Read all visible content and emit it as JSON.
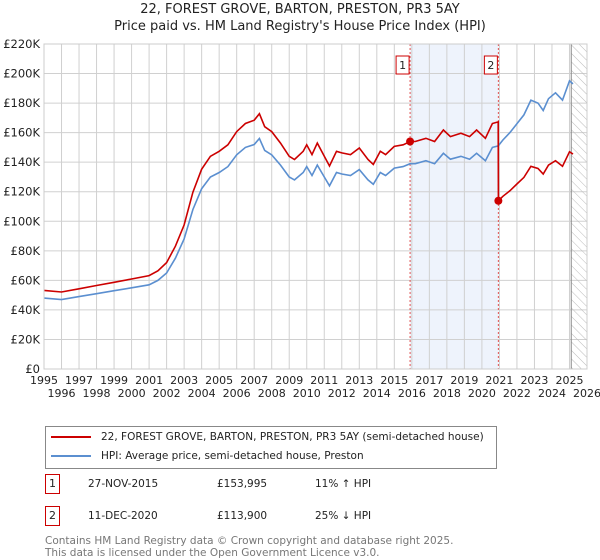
{
  "chart_data": {
    "type": "line",
    "title": "22, FOREST GROVE, BARTON, PRESTON, PR3 5AY",
    "subtitle": "Price paid vs. HM Land Registry's House Price Index (HPI)",
    "xlabel": "",
    "ylabel": "",
    "xlim": [
      1995,
      2026
    ],
    "ylim": [
      0,
      220000
    ],
    "x_ticks": [
      "1995",
      "1996",
      "1997",
      "1998",
      "1999",
      "2000",
      "2001",
      "2002",
      "2003",
      "2004",
      "2005",
      "2006",
      "2007",
      "2008",
      "2009",
      "2010",
      "2011",
      "2012",
      "2013",
      "2014",
      "2015",
      "2016",
      "2017",
      "2018",
      "2019",
      "2020",
      "2021",
      "2022",
      "2023",
      "2024",
      "2025",
      "2026"
    ],
    "y_ticks": [
      {
        "v": 0,
        "label": "£0"
      },
      {
        "v": 20000,
        "label": "£20K"
      },
      {
        "v": 40000,
        "label": "£40K"
      },
      {
        "v": 60000,
        "label": "£60K"
      },
      {
        "v": 80000,
        "label": "£80K"
      },
      {
        "v": 100000,
        "label": "£100K"
      },
      {
        "v": 120000,
        "label": "£120K"
      },
      {
        "v": 140000,
        "label": "£140K"
      },
      {
        "v": 160000,
        "label": "£160K"
      },
      {
        "v": 180000,
        "label": "£180K"
      },
      {
        "v": 200000,
        "label": "£200K"
      },
      {
        "v": 220000,
        "label": "£220K"
      }
    ],
    "grid": true,
    "forecast_from": 2025.1,
    "series": [
      {
        "name": "22, FOREST GROVE, BARTON, PRESTON, PR3 5AY (semi-detached house)",
        "color": "#cc0000",
        "x": [
          1995,
          1996,
          1997,
          1998,
          1999,
          2000,
          2001,
          2001.5,
          2002,
          2002.5,
          2003,
          2003.5,
          2004,
          2004.5,
          2005,
          2005.5,
          2006,
          2006.5,
          2007,
          2007.3,
          2007.6,
          2008,
          2008.5,
          2009,
          2009.3,
          2009.8,
          2010,
          2010.3,
          2010.6,
          2011,
          2011.3,
          2011.7,
          2012,
          2012.5,
          2013,
          2013.5,
          2013.8,
          2014.2,
          2014.5,
          2015,
          2015.5,
          2015.9,
          2016.2,
          2016.8,
          2017.3,
          2017.8,
          2018.2,
          2018.8,
          2019.3,
          2019.7,
          2020.2,
          2020.6,
          2020.93,
          2020.94,
          2021.2,
          2021.6,
          2022,
          2022.4,
          2022.8,
          2023.2,
          2023.5,
          2023.8,
          2024.2,
          2024.6,
          2025,
          2025.2
        ],
        "y": [
          53200,
          52100,
          54300,
          56500,
          58700,
          60900,
          63200,
          66500,
          72000,
          83100,
          97500,
          119700,
          135200,
          144000,
          147400,
          151800,
          160700,
          166200,
          168400,
          172800,
          164000,
          160700,
          152900,
          144000,
          141800,
          147400,
          151800,
          145100,
          152900,
          144000,
          137400,
          147400,
          146300,
          145100,
          149600,
          141800,
          138500,
          147400,
          145100,
          150700,
          151800,
          153995,
          154000,
          156200,
          154000,
          161800,
          157300,
          159600,
          157300,
          161800,
          156200,
          166200,
          167300,
          113900,
          116900,
          120600,
          125200,
          129700,
          137200,
          135700,
          132000,
          138000,
          141000,
          137200,
          147000,
          145500
        ]
      },
      {
        "name": "HPI: Average price, semi-detached house, Preston",
        "color": "#5b8fd0",
        "x": [
          1995,
          1996,
          1997,
          1998,
          1999,
          2000,
          2001,
          2001.5,
          2002,
          2002.5,
          2003,
          2003.5,
          2004,
          2004.5,
          2005,
          2005.5,
          2006,
          2006.5,
          2007,
          2007.3,
          2007.6,
          2008,
          2008.5,
          2009,
          2009.3,
          2009.8,
          2010,
          2010.3,
          2010.6,
          2011,
          2011.3,
          2011.7,
          2012,
          2012.5,
          2013,
          2013.5,
          2013.8,
          2014.2,
          2014.5,
          2015,
          2015.5,
          2015.9,
          2016.2,
          2016.8,
          2017.3,
          2017.8,
          2018.2,
          2018.8,
          2019.3,
          2019.7,
          2020.2,
          2020.6,
          2020.93,
          2021.2,
          2021.6,
          2022,
          2022.4,
          2022.8,
          2023.2,
          2023.5,
          2023.8,
          2024.2,
          2024.6,
          2025,
          2025.2
        ],
        "y": [
          48000,
          47000,
          49000,
          51000,
          53000,
          55000,
          57000,
          60000,
          65000,
          75000,
          88000,
          108000,
          122000,
          130000,
          133000,
          137000,
          145000,
          150000,
          152000,
          156000,
          148000,
          145000,
          138000,
          130000,
          128000,
          133000,
          137000,
          131000,
          138000,
          130000,
          124000,
          133000,
          132000,
          131000,
          135000,
          128000,
          125000,
          133000,
          131000,
          136000,
          137000,
          139000,
          139000,
          141000,
          139000,
          146000,
          142000,
          144000,
          142000,
          146000,
          141000,
          150000,
          151000,
          155000,
          160000,
          166000,
          172000,
          182000,
          180000,
          175000,
          183000,
          187000,
          182000,
          195000,
          193000
        ]
      }
    ],
    "sales": [
      {
        "id": "1",
        "date": "27-NOV-2015",
        "x": 2015.9,
        "price": "£153,995",
        "value": 153995,
        "hpi_diff": "11% ↑ HPI"
      },
      {
        "id": "2",
        "date": "11-DEC-2020",
        "x": 2020.94,
        "price": "£113,900",
        "value": 113900,
        "hpi_diff": "25% ↓ HPI"
      }
    ]
  },
  "footer": {
    "line1": "Contains HM Land Registry data © Crown copyright and database right 2025.",
    "line2": "This data is licensed under the Open Government Licence v3.0."
  }
}
